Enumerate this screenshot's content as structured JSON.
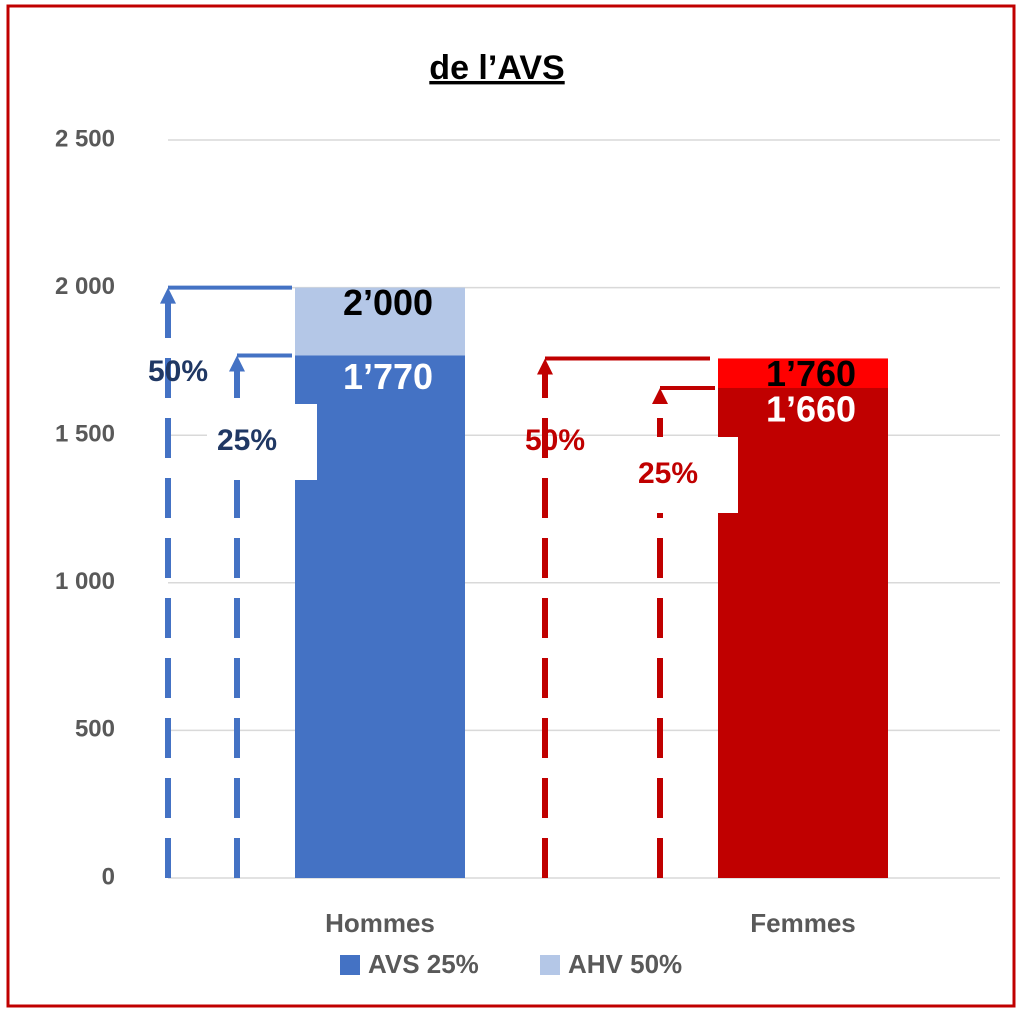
{
  "chart_data": {
    "type": "bar",
    "title": "de l’AVS",
    "categories": [
      "Hommes",
      "Femmes"
    ],
    "series": [
      {
        "name": "AVS 25%",
        "color": "#4472c4",
        "point_colors": [
          "#4472c4",
          "#c00000"
        ],
        "values": [
          1770,
          1660
        ],
        "value_labels": [
          "1’770",
          "1’660"
        ]
      },
      {
        "name": "AHV 50%",
        "color": "#b4c7e7",
        "point_colors": [
          "#b4c7e7",
          "#ff0000"
        ],
        "values": [
          2000,
          1760
        ],
        "value_labels": [
          "2’000",
          "1’760"
        ]
      }
    ],
    "annotations": [
      {
        "text": "50%"
      },
      {
        "text": "25%"
      },
      {
        "text": "50%"
      },
      {
        "text": "25%"
      }
    ],
    "ylim": [
      0,
      2500
    ],
    "yticks": [
      0,
      {
        "value": 500,
        "label": "500"
      },
      {
        "value": 1000,
        "label": "1 000"
      },
      {
        "value": 1500,
        "label": "1 500"
      },
      {
        "value": 2000,
        "label": "2 000"
      },
      {
        "value": 2500,
        "label": "2 500"
      }
    ],
    "grid": true,
    "legend": "bottom"
  }
}
